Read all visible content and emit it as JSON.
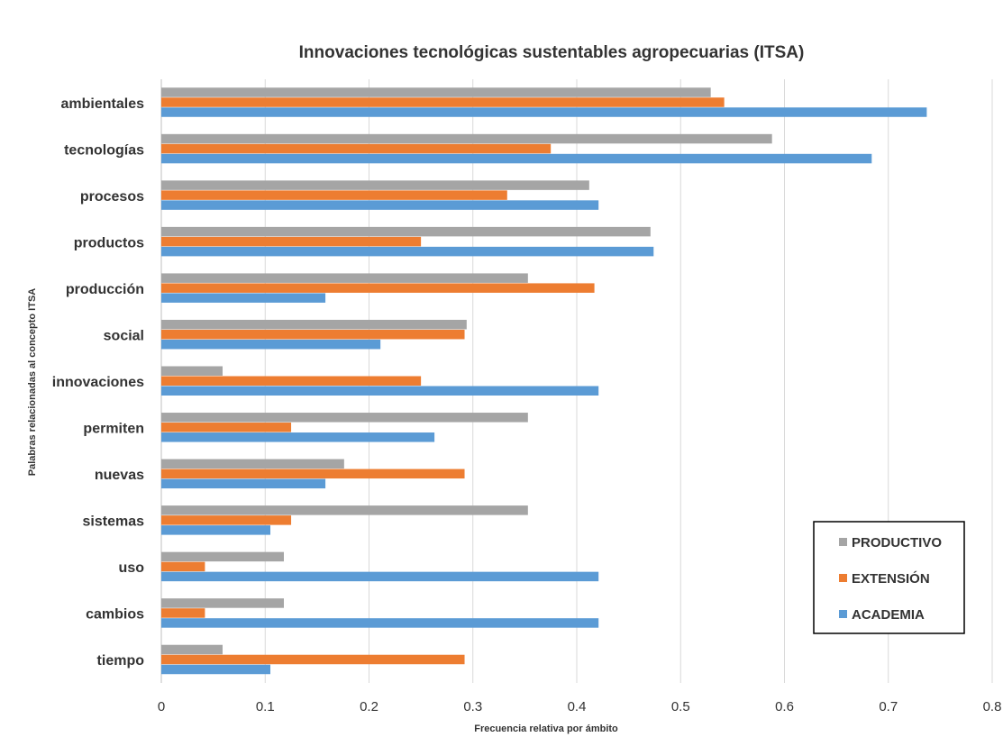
{
  "chart_data": {
    "type": "bar",
    "orientation": "horizontal",
    "title": "Innovaciones tecnológicas sustentables agropecuarias (ITSA)",
    "xlabel": "Frecuencia relativa por ámbito",
    "ylabel": "Palabras relacionadas al concepto ITSA",
    "xlim": [
      0,
      0.8
    ],
    "xticks": [
      "0",
      "0.1",
      "0.2",
      "0.3",
      "0.4",
      "0.5",
      "0.6",
      "0.7",
      "0.8"
    ],
    "grid": true,
    "legend_position": "bottom-right",
    "categories": [
      "ambientales",
      "tecnologías",
      "procesos",
      "productos",
      "producción",
      "social",
      "innovaciones",
      "permiten",
      "nuevas",
      "sistemas",
      "uso",
      "cambios",
      "tiempo"
    ],
    "series": [
      {
        "name": "PRODUCTIVO",
        "color": "#A5A5A5",
        "values": [
          0.529,
          0.588,
          0.412,
          0.471,
          0.353,
          0.294,
          0.059,
          0.353,
          0.176,
          0.353,
          0.118,
          0.118,
          0.059
        ]
      },
      {
        "name": "EXTENSIÓN",
        "color": "#ED7D31",
        "values": [
          0.542,
          0.375,
          0.333,
          0.25,
          0.417,
          0.292,
          0.25,
          0.125,
          0.292,
          0.125,
          0.042,
          0.042,
          0.292
        ]
      },
      {
        "name": "ACADEMIA",
        "color": "#5B9BD5",
        "values": [
          0.737,
          0.684,
          0.421,
          0.474,
          0.158,
          0.211,
          0.421,
          0.263,
          0.158,
          0.105,
          0.421,
          0.421,
          0.105
        ]
      }
    ]
  }
}
